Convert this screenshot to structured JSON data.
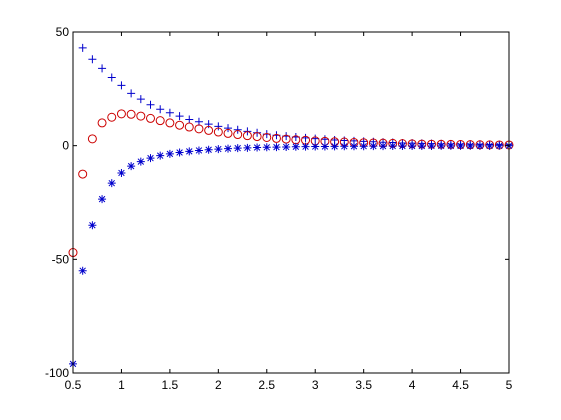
{
  "chart_data": {
    "type": "scatter",
    "title": "",
    "xlabel": "",
    "ylabel": "",
    "xlim": [
      0.5,
      5
    ],
    "ylim": [
      -100,
      50
    ],
    "xticks": [
      0.5,
      1,
      1.5,
      2,
      2.5,
      3,
      3.5,
      4,
      4.5,
      5
    ],
    "xtick_labels": [
      "0.5",
      "1",
      "1.5",
      "2",
      "2.5",
      "3",
      "3.5",
      "4",
      "4.5",
      "5"
    ],
    "yticks": [
      -100,
      -50,
      0,
      50
    ],
    "ytick_labels": [
      "-100",
      "-50",
      "0",
      "50"
    ],
    "grid": false,
    "series": [
      {
        "marker": "plus",
        "color": "#0000cc",
        "x": [
          0.6,
          0.7,
          0.8,
          0.9,
          1.0,
          1.1,
          1.2,
          1.3,
          1.4,
          1.5,
          1.6,
          1.7,
          1.8,
          1.9,
          2.0,
          2.1,
          2.2,
          2.3,
          2.4,
          2.5,
          2.6,
          2.7,
          2.8,
          2.9,
          3.0,
          3.1,
          3.2,
          3.3,
          3.4,
          3.5,
          3.6,
          3.7,
          3.8,
          3.9,
          4.0,
          4.1,
          4.2,
          4.3,
          4.4,
          4.5,
          4.6,
          4.7,
          4.8,
          4.9,
          5.0
        ],
        "values": [
          43.0,
          38.0,
          34.0,
          30.0,
          26.5,
          23.0,
          20.5,
          18.0,
          16.0,
          14.5,
          13.0,
          11.5,
          10.5,
          9.5,
          8.5,
          7.7,
          7.0,
          6.3,
          5.7,
          5.1,
          4.6,
          4.2,
          3.8,
          3.4,
          3.1,
          2.8,
          2.5,
          2.3,
          2.1,
          1.9,
          1.7,
          1.5,
          1.4,
          1.2,
          1.1,
          1.0,
          0.9,
          0.8,
          0.75,
          0.7,
          0.6,
          0.55,
          0.5,
          0.45,
          0.4
        ]
      },
      {
        "marker": "circle",
        "color": "#cc0000",
        "x": [
          0.5,
          0.6,
          0.7,
          0.8,
          0.9,
          1.0,
          1.1,
          1.2,
          1.3,
          1.4,
          1.5,
          1.6,
          1.7,
          1.8,
          1.9,
          2.0,
          2.1,
          2.2,
          2.3,
          2.4,
          2.5,
          2.6,
          2.7,
          2.8,
          2.9,
          3.0,
          3.1,
          3.2,
          3.3,
          3.4,
          3.5,
          3.6,
          3.7,
          3.8,
          3.9,
          4.0,
          4.1,
          4.2,
          4.3,
          4.4,
          4.5,
          4.6,
          4.7,
          4.8,
          4.9,
          5.0
        ],
        "values": [
          -47.0,
          -12.5,
          3.0,
          10.0,
          12.5,
          14.0,
          13.8,
          13.0,
          12.0,
          11.0,
          10.0,
          9.0,
          8.2,
          7.4,
          6.7,
          6.0,
          5.4,
          4.9,
          4.4,
          4.0,
          3.6,
          3.2,
          2.9,
          2.6,
          2.4,
          2.1,
          1.9,
          1.7,
          1.6,
          1.4,
          1.3,
          1.2,
          1.1,
          1.0,
          0.9,
          0.8,
          0.7,
          0.65,
          0.6,
          0.55,
          0.5,
          0.45,
          0.4,
          0.35,
          0.3,
          0.3
        ]
      },
      {
        "marker": "asterisk",
        "color": "#0000cc",
        "x": [
          0.5,
          0.6,
          0.7,
          0.8,
          0.9,
          1.0,
          1.1,
          1.2,
          1.3,
          1.4,
          1.5,
          1.6,
          1.7,
          1.8,
          1.9,
          2.0,
          2.1,
          2.2,
          2.3,
          2.4,
          2.5,
          2.6,
          2.7,
          2.8,
          2.9,
          3.0,
          3.1,
          3.2,
          3.3,
          3.4,
          3.5,
          3.6,
          3.7,
          3.8,
          3.9,
          4.0,
          4.1,
          4.2,
          4.3,
          4.4,
          4.5,
          4.6,
          4.7,
          4.8,
          4.9,
          5.0
        ],
        "values": [
          -96.0,
          -55.0,
          -35.0,
          -23.5,
          -16.5,
          -12.0,
          -9.0,
          -7.0,
          -5.5,
          -4.4,
          -3.6,
          -3.0,
          -2.5,
          -2.1,
          -1.8,
          -1.5,
          -1.3,
          -1.1,
          -0.95,
          -0.82,
          -0.72,
          -0.63,
          -0.56,
          -0.49,
          -0.44,
          -0.39,
          -0.35,
          -0.31,
          -0.28,
          -0.25,
          -0.23,
          -0.21,
          -0.19,
          -0.17,
          -0.15,
          -0.14,
          -0.13,
          -0.12,
          -0.11,
          -0.1,
          -0.09,
          -0.08,
          -0.075,
          -0.07,
          -0.06,
          -0.05
        ]
      }
    ]
  }
}
